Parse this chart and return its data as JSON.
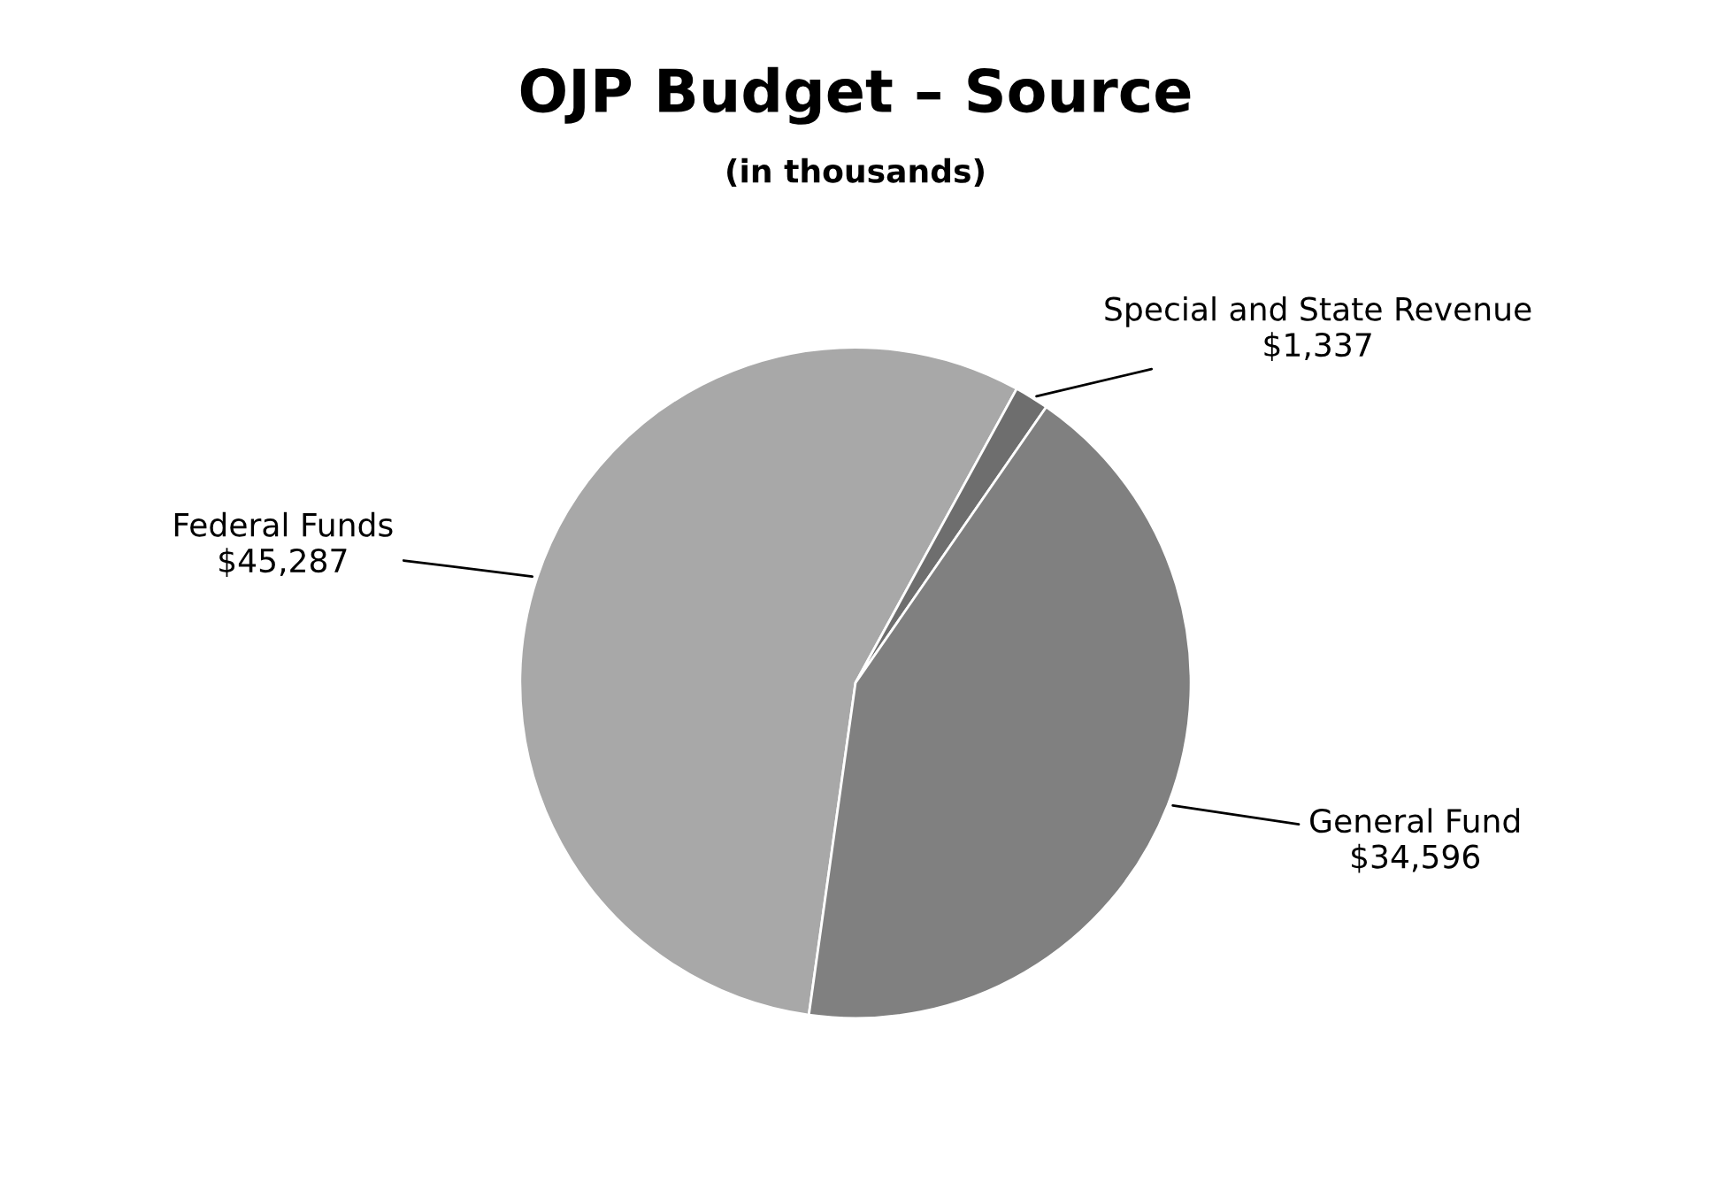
{
  "chart_data": {
    "type": "pie",
    "title": "OJP Budget – Source",
    "subtitle": "(in thousands)",
    "categories": [
      "Federal Funds",
      "Special and State Revenue",
      "General Fund"
    ],
    "values": [
      45287,
      1337,
      34596
    ],
    "value_labels": [
      "$45,287",
      "$1,337",
      "$34,596"
    ],
    "colors": [
      "#a8a8a8",
      "#6e6e6e",
      "#808080"
    ]
  }
}
